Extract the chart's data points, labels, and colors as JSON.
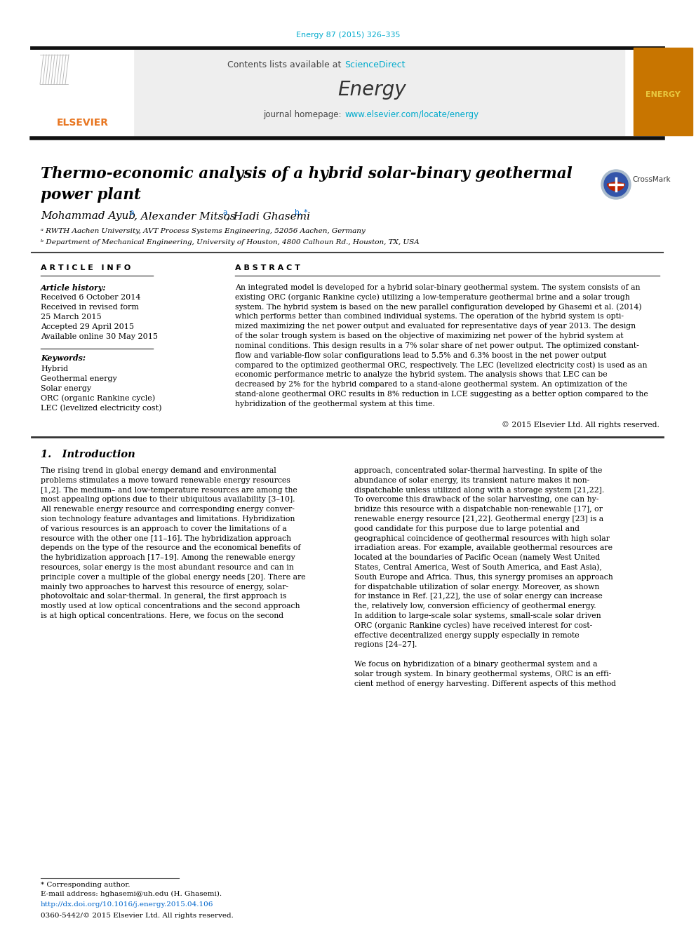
{
  "journal_ref": "Energy 87 (2015) 326–335",
  "journal_ref_color": "#00aacc",
  "sciencedirect_color": "#00aacc",
  "journal_name": "Energy",
  "journal_homepage_url": "www.elsevier.com/locate/energy",
  "paper_title_line1": "Thermo-economic analysis of a hybrid solar-binary geothermal",
  "paper_title_line2": "power plant",
  "article_info_header": "A R T I C L E   I N F O",
  "abstract_header": "A B S T R A C T",
  "keywords": [
    "Hybrid",
    "Geothermal energy",
    "Solar energy",
    "ORC (organic Rankine cycle)",
    "LEC (levelized electricity cost)"
  ],
  "abs_lines": [
    "An integrated model is developed for a hybrid solar-binary geothermal system. The system consists of an",
    "existing ORC (organic Rankine cycle) utilizing a low-temperature geothermal brine and a solar trough",
    "system. The hybrid system is based on the new parallel configuration developed by Ghasemi et al. (2014)",
    "which performs better than combined individual systems. The operation of the hybrid system is opti-",
    "mized maximizing the net power output and evaluated for representative days of year 2013. The design",
    "of the solar trough system is based on the objective of maximizing net power of the hybrid system at",
    "nominal conditions. This design results in a 7% solar share of net power output. The optimized constant-",
    "flow and variable-flow solar configurations lead to 5.5% and 6.3% boost in the net power output",
    "compared to the optimized geothermal ORC, respectively. The LEC (levelized electricity cost) is used as an",
    "economic performance metric to analyze the hybrid system. The analysis shows that LEC can be",
    "decreased by 2% for the hybrid compared to a stand-alone geothermal system. An optimization of the",
    "stand-alone geothermal ORC results in 8% reduction in LCE suggesting as a better option compared to the",
    "hybridization of the geothermal system at this time."
  ],
  "copyright": "© 2015 Elsevier Ltd. All rights reserved.",
  "col1_lines": [
    "The rising trend in global energy demand and environmental",
    "problems stimulates a move toward renewable energy resources",
    "[1,2]. The medium– and low-temperature resources are among the",
    "most appealing options due to their ubiquitous availability [3–10].",
    "All renewable energy resource and corresponding energy conver-",
    "sion technology feature advantages and limitations. Hybridization",
    "of various resources is an approach to cover the limitations of a",
    "resource with the other one [11–16]. The hybridization approach",
    "depends on the type of the resource and the economical benefits of",
    "the hybridization approach [17–19]. Among the renewable energy",
    "resources, solar energy is the most abundant resource and can in",
    "principle cover a multiple of the global energy needs [20]. There are",
    "mainly two approaches to harvest this resource of energy, solar-",
    "photovoltaic and solar-thermal. In general, the first approach is",
    "mostly used at low optical concentrations and the second approach",
    "is at high optical concentrations. Here, we focus on the second"
  ],
  "col2_lines": [
    "approach, concentrated solar-thermal harvesting. In spite of the",
    "abundance of solar energy, its transient nature makes it non-",
    "dispatchable unless utilized along with a storage system [21,22].",
    "To overcome this drawback of the solar harvesting, one can hy-",
    "bridize this resource with a dispatchable non-renewable [17], or",
    "renewable energy resource [21,22]. Geothermal energy [23] is a",
    "good candidate for this purpose due to large potential and",
    "geographical coincidence of geothermal resources with high solar",
    "irradiation areas. For example, available geothermal resources are",
    "located at the boundaries of Pacific Ocean (namely West United",
    "States, Central America, West of South America, and East Asia),",
    "South Europe and Africa. Thus, this synergy promises an approach",
    "for dispatchable utilization of solar energy. Moreover, as shown",
    "for instance in Ref. [21,22], the use of solar energy can increase",
    "the, relatively low, conversion efficiency of geothermal energy.",
    "In addition to large-scale solar systems, small-scale solar driven",
    "ORC (organic Rankine cycles) have received interest for cost-",
    "effective decentralized energy supply especially in remote",
    "regions [24–27].",
    "",
    "We focus on hybridization of a binary geothermal system and a",
    "solar trough system. In binary geothermal systems, ORC is an effi-",
    "cient method of energy harvesting. Different aspects of this method"
  ],
  "footnote_corresp": "* Corresponding author.",
  "footnote_email": "E-mail address: hghasemi@uh.edu (H. Ghasemi).",
  "footnote_doi": "http://dx.doi.org/10.1016/j.energy.2015.04.106",
  "footnote_issn": "0360-5442/© 2015 Elsevier Ltd. All rights reserved."
}
